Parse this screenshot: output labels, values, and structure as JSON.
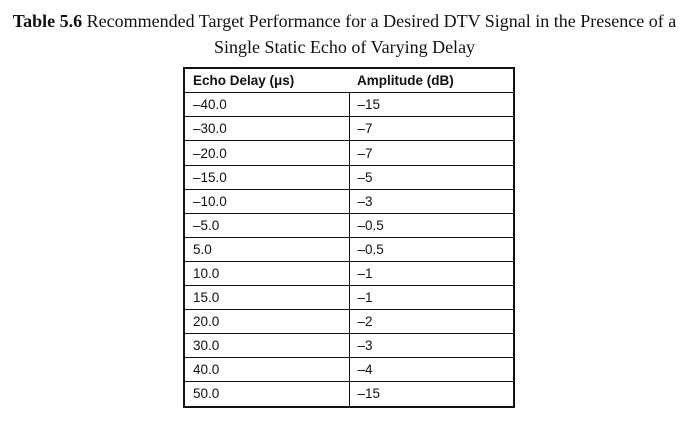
{
  "caption": {
    "number": "Table 5.6",
    "text": "Recommended Target Performance for a Desired DTV Signal in the Presence of a Single Static Echo of Varying Delay"
  },
  "table": {
    "headers": [
      "Echo Delay (μs)",
      "Amplitude (dB)"
    ],
    "rows": [
      [
        "–40.0",
        "–15"
      ],
      [
        "–30.0",
        "–7"
      ],
      [
        "–20.0",
        "–7"
      ],
      [
        "–15.0",
        "–5"
      ],
      [
        "–10.0",
        "–3"
      ],
      [
        "–5.0",
        "–0.5"
      ],
      [
        "5.0",
        "–0.5"
      ],
      [
        "10.0",
        "–1"
      ],
      [
        "15.0",
        "–1"
      ],
      [
        "20.0",
        "–2"
      ],
      [
        "30.0",
        "–3"
      ],
      [
        "40.0",
        "–4"
      ],
      [
        "50.0",
        "–15"
      ]
    ]
  },
  "colors": {
    "text": "#111111",
    "border": "#111111",
    "background": "#ffffff"
  }
}
